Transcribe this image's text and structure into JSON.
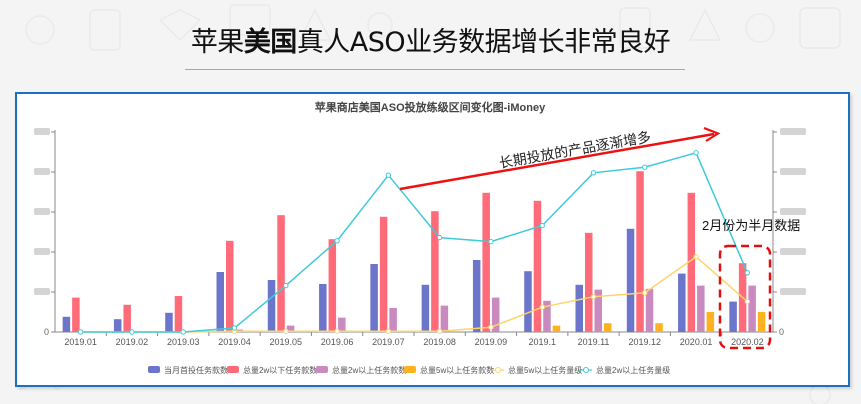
{
  "slide": {
    "title_prefix": "苹果",
    "title_bold": "美国",
    "title_suffix": "真人ASO业务数据增长非常良好"
  },
  "annotations": {
    "arrow_label": "长期投放的产品逐渐增多",
    "half_month_note": "2月份为半月数据",
    "highlight_category": "2020.02"
  },
  "colors": {
    "blue": "#6b75c9",
    "red": "#ff6b78",
    "purple": "#c98bbf",
    "orange": "#ffb21f",
    "yellow_line": "#ffd36a",
    "cyan_line": "#3fcadb",
    "arrow": "#ee1111",
    "box_border": "#1f6fbf",
    "title_rule": "#5ccf9a"
  },
  "chart_data": {
    "type": "bar",
    "title": "苹果商店美国ASO投放练级区间变化图-iMoney",
    "xlabel": "",
    "ylabel": "",
    "left_axis": {
      "ticks_visible": [
        "0"
      ],
      "tick_count": 6,
      "labels_blurred": true
    },
    "right_axis": {
      "ticks_visible": [
        "0"
      ],
      "tick_count": 6,
      "labels_blurred": true
    },
    "ylim": [
      0,
      250
    ],
    "grid": false,
    "legend_position": "bottom",
    "categories": [
      "2019.01",
      "2019.02",
      "2019.03",
      "2019.04",
      "2019.05",
      "2019.06",
      "2019.07",
      "2019.08",
      "2019.09",
      "2019.1",
      "2019.11",
      "2019.12",
      "2020.01",
      "2020.02"
    ],
    "series": [
      {
        "name": "当月首投任务款数",
        "type": "bar",
        "axis": "left",
        "color": "#6b75c9",
        "values": [
          19,
          16,
          24,
          75,
          65,
          60,
          85,
          59,
          90,
          76,
          59,
          129,
          73,
          38
        ]
      },
      {
        "name": "总量2w以下任务款数",
        "type": "bar",
        "axis": "left",
        "color": "#ff6b78",
        "values": [
          43,
          34,
          45,
          114,
          146,
          116,
          144,
          151,
          174,
          164,
          124,
          201,
          174,
          86
        ]
      },
      {
        "name": "总量2w以上任务款数",
        "type": "bar",
        "axis": "left",
        "color": "#c98bbf",
        "values": [
          0,
          0,
          0,
          3,
          8,
          18,
          30,
          33,
          43,
          39,
          53,
          54,
          58,
          58
        ]
      },
      {
        "name": "总量5w以上任务款数",
        "type": "bar",
        "axis": "left",
        "color": "#ffb21f",
        "values": [
          0,
          0,
          0,
          0,
          0,
          0,
          0,
          0,
          1,
          8,
          11,
          11,
          25,
          25
        ]
      },
      {
        "name": "总量5w以上任务量级",
        "type": "line",
        "axis": "right",
        "color": "#ffd36a",
        "values": [
          0,
          0,
          0,
          1,
          1,
          1,
          1,
          1,
          6,
          31,
          44,
          49,
          94,
          38
        ]
      },
      {
        "name": "总量2w以上任务量级",
        "type": "line",
        "axis": "right",
        "color": "#3fcadb",
        "values": [
          0,
          0,
          0,
          5,
          58,
          114,
          196,
          118,
          113,
          133,
          199,
          206,
          224,
          74
        ]
      }
    ]
  }
}
